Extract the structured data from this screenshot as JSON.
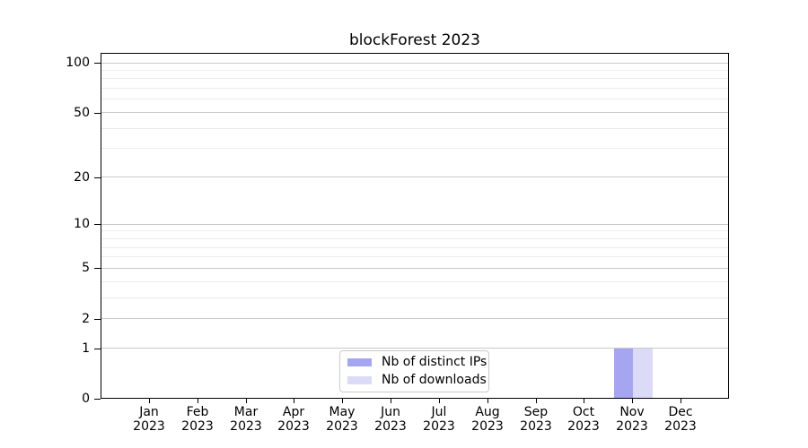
{
  "chart_data": {
    "type": "bar",
    "title": "blockForest 2023",
    "categories": [
      "Jan",
      "Feb",
      "Mar",
      "Apr",
      "May",
      "Jun",
      "Jul",
      "Aug",
      "Sep",
      "Oct",
      "Nov",
      "Dec"
    ],
    "x_tick_year": "2023",
    "series": [
      {
        "name": "Nb of distinct IPs",
        "color": "#a5a5f2",
        "values": [
          0,
          0,
          0,
          0,
          0,
          0,
          0,
          0,
          0,
          0,
          1,
          0
        ]
      },
      {
        "name": "Nb of downloads",
        "color": "#dbdbf7",
        "values": [
          0,
          0,
          0,
          0,
          0,
          0,
          0,
          0,
          0,
          0,
          1,
          0
        ]
      }
    ],
    "y_axis": {
      "scale": "log1p",
      "ticks": [
        0,
        1,
        2,
        5,
        10,
        20,
        50,
        100
      ],
      "minor_ticks": [
        3,
        4,
        6,
        7,
        8,
        9,
        30,
        40,
        60,
        70,
        80,
        90
      ]
    },
    "legend": {
      "position": "lower-center"
    },
    "colors": {
      "grid_major": "#c9c9c9",
      "grid_minor": "#ebebeb",
      "axis": "#000000",
      "background": "#ffffff"
    }
  }
}
